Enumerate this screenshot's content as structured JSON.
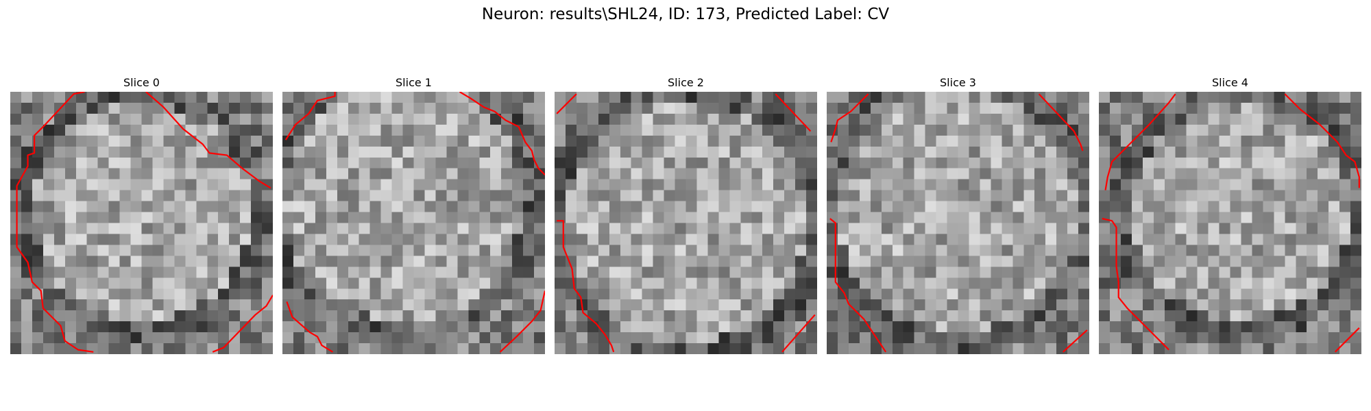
{
  "figure": {
    "title": "Neuron: results\\SHL24, ID: 173, Predicted Label: CV"
  },
  "contour_color": "#ff0000",
  "slices": [
    {
      "title": "Slice 0"
    },
    {
      "title": "Slice 1"
    },
    {
      "title": "Slice 2"
    },
    {
      "title": "Slice 3"
    },
    {
      "title": "Slice 4"
    }
  ]
}
